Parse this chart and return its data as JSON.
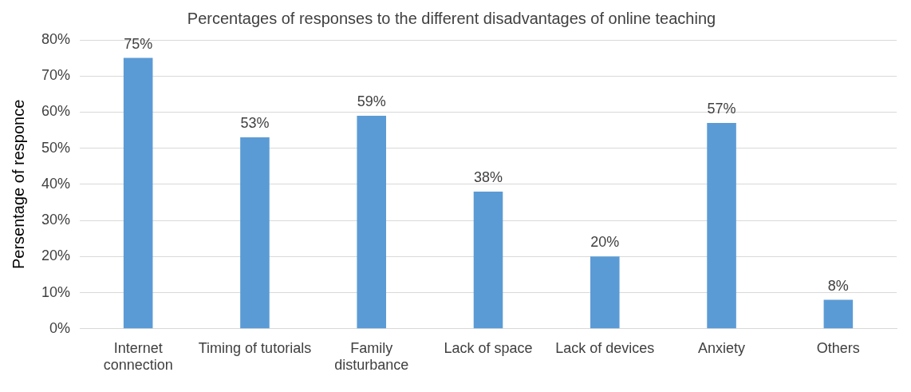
{
  "chart_data": {
    "type": "bar",
    "title": "Percentages of responses to the different disadvantages of online teaching",
    "ylabel": "Persentage of responce",
    "categories": [
      "Internet connection",
      "Timing of tutorials",
      "Family disturbance",
      "Lack of space",
      "Lack of devices",
      "Anxiety",
      "Others"
    ],
    "values": [
      75,
      53,
      59,
      38,
      20,
      57,
      8
    ],
    "value_labels": [
      "75%",
      "53%",
      "59%",
      "38%",
      "20%",
      "57%",
      "8%"
    ],
    "color": "#5b9bd5",
    "ylim": [
      0,
      80
    ],
    "yticks": [
      {
        "value": 0,
        "label": "0%"
      },
      {
        "value": 10,
        "label": "10%"
      },
      {
        "value": 20,
        "label": "20%"
      },
      {
        "value": 30,
        "label": "30%"
      },
      {
        "value": 40,
        "label": "40%"
      },
      {
        "value": 50,
        "label": "50%"
      },
      {
        "value": 60,
        "label": "60%"
      },
      {
        "value": 70,
        "label": "70%"
      },
      {
        "value": 80,
        "label": "80%"
      }
    ],
    "grid": "y",
    "legend": false
  }
}
